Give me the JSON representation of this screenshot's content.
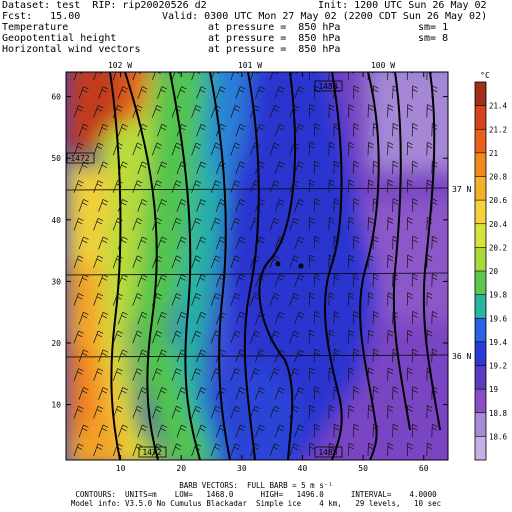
{
  "header": {
    "dataset": "Dataset: test  RIP: rip20020526 d2",
    "init": "Init: 1200 UTC Sun 26 May 02",
    "fcst": "Fcst:   15.00",
    "valid": "Valid: 0300 UTC Mon 27 May 02 (2200 CDT Sun 26 May 02)",
    "fields": [
      {
        "name": "Temperature",
        "pressure": "at pressure =  850 hPa",
        "sm": "sm= 1"
      },
      {
        "name": "Geopotential height",
        "pressure": "at pressure =  850 hPa",
        "sm": "sm= 8"
      },
      {
        "name": "Horizontal wind vectors",
        "pressure": "at pressure =  850 hPa",
        "sm": ""
      }
    ]
  },
  "footer": {
    "barb": "BARB VECTORS:  FULL BARB = 5 m s⁻¹",
    "contours": "CONTOURS:  UNITS=m    LOW=   1468.0      HIGH=   1496.0      INTERVAL=    4.0000",
    "model": "Model info: V3.5.0 No Cumulus Blackadar  Simple ice    4 km,   29 levels,   10 sec"
  },
  "chart_data": {
    "type": "heatmap",
    "xlim": [
      1,
      64
    ],
    "ylim": [
      1,
      64
    ],
    "x_ticks": [
      "10",
      "20",
      "30",
      "40",
      "50",
      "60"
    ],
    "y_ticks": [
      "10",
      "20",
      "30",
      "40",
      "50",
      "60"
    ],
    "longitude_labels": [
      "102 W",
      "101 W",
      "100 W"
    ],
    "latitude_labels": [
      "37 N",
      "36 N"
    ],
    "contour_labels": [
      "1472",
      "1472",
      "1488",
      "1488"
    ],
    "colorbar": {
      "unit": "°C",
      "levels": [
        "21.4",
        "21.2",
        "21",
        "20.8",
        "20.6",
        "20.4",
        "20.2",
        "20",
        "19.8",
        "19.6",
        "19.4",
        "19.2",
        "19",
        "18.8",
        "18.6"
      ],
      "colors": [
        "#a0301a",
        "#d2451e",
        "#e8601c",
        "#f08a1e",
        "#f5b12a",
        "#f5d23c",
        "#d8e23c",
        "#a8d83a",
        "#5fc84c",
        "#2bb4a0",
        "#2a62e0",
        "#2a3ad0",
        "#5a3cc0",
        "#8a4ec4",
        "#a98ad8",
        "#c4b0e4"
      ]
    },
    "title": "",
    "xlabel": "",
    "ylabel": ""
  }
}
